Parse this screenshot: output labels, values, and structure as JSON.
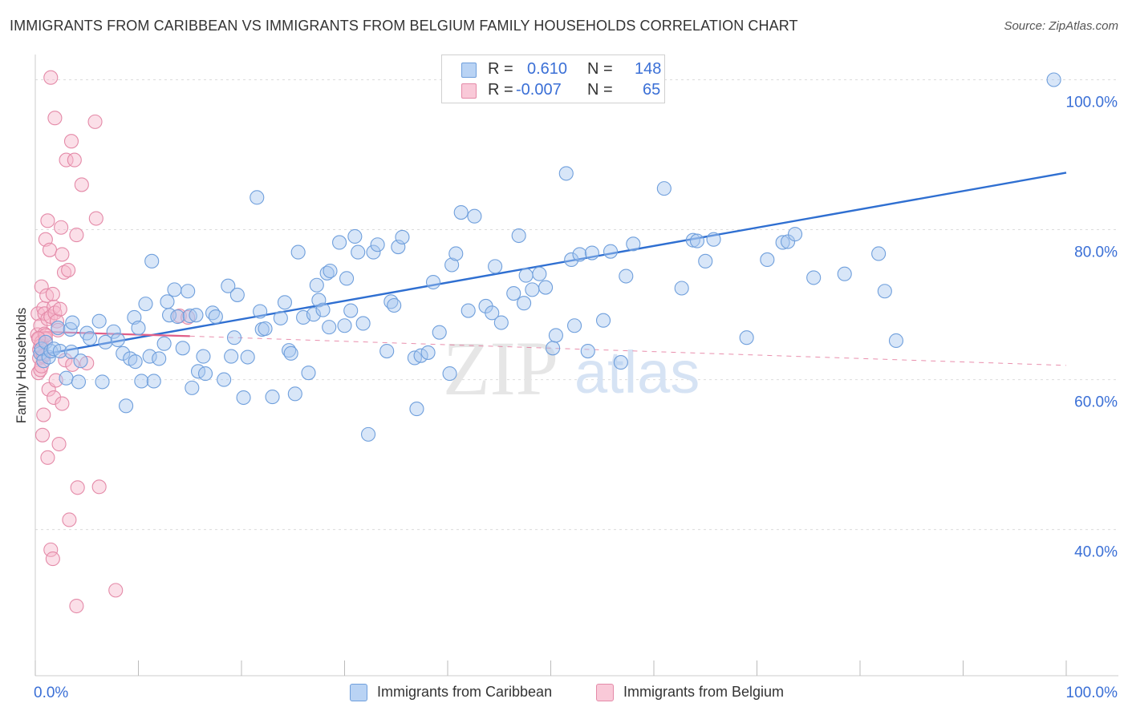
{
  "title": "IMMIGRANTS FROM CARIBBEAN VS IMMIGRANTS FROM BELGIUM FAMILY HOUSEHOLDS CORRELATION CHART",
  "source": "Source: ZipAtlas.com",
  "watermark": {
    "zip": "ZIP",
    "atlas": "atlas"
  },
  "legend": {
    "r_label": "R =",
    "n_label": "N =",
    "rows": [
      {
        "r": "0.610",
        "n": "148"
      },
      {
        "r": "-0.007",
        "n": "65"
      }
    ]
  },
  "colors": {
    "blue_fill": "#a8c8f0",
    "blue_stroke": "#6f9fdc",
    "blue_line": "#2f6fd1",
    "pink_fill": "#f7b8cc",
    "pink_stroke": "#e48aa8",
    "pink_line": "#e0608a",
    "axis_text": "#3a6fd6"
  },
  "chart_data": {
    "type": "scatter",
    "title": "IMMIGRANTS FROM CARIBBEAN VS IMMIGRANTS FROM BELGIUM FAMILY HOUSEHOLDS CORRELATION CHART",
    "xlabel": "",
    "ylabel": "Family Households",
    "x_unit": "%",
    "y_unit": "%",
    "xlim": [
      0,
      100
    ],
    "ylim": [
      20.5,
      102.3
    ],
    "x_ticks": [
      {
        "value": 0,
        "label": "0.0%"
      },
      {
        "value": 100,
        "label": "100.0%"
      }
    ],
    "y_ticks": [
      {
        "value": 40,
        "label": "40.0%"
      },
      {
        "value": 60,
        "label": "60.0%"
      },
      {
        "value": 80,
        "label": "80.0%"
      },
      {
        "value": 100,
        "label": "100.0%"
      }
    ],
    "series": [
      {
        "name": "Immigrants from Caribbean",
        "r": 0.61,
        "n": 148,
        "trend": {
          "x": [
            0.5,
            100
          ],
          "y": [
            63.3,
            87.6
          ],
          "style": "solid"
        },
        "points": [
          [
            0.5,
            63.5
          ],
          [
            0.6,
            64.1
          ],
          [
            0.8,
            62.5
          ],
          [
            1.0,
            65.0
          ],
          [
            1.3,
            63.0
          ],
          [
            1.5,
            63.8
          ],
          [
            1.8,
            64.1
          ],
          [
            2.2,
            66.9
          ],
          [
            2.4,
            63.8
          ],
          [
            3.0,
            60.2
          ],
          [
            3.4,
            66.7
          ],
          [
            3.5,
            63.7
          ],
          [
            3.6,
            67.6
          ],
          [
            4.2,
            59.7
          ],
          [
            4.4,
            62.5
          ],
          [
            5.0,
            66.2
          ],
          [
            5.3,
            65.5
          ],
          [
            6.2,
            67.8
          ],
          [
            6.5,
            59.7
          ],
          [
            6.8,
            65.0
          ],
          [
            7.6,
            66.4
          ],
          [
            8.0,
            65.3
          ],
          [
            8.5,
            63.5
          ],
          [
            8.8,
            56.5
          ],
          [
            9.2,
            62.8
          ],
          [
            9.6,
            68.3
          ],
          [
            9.7,
            62.4
          ],
          [
            10.0,
            66.9
          ],
          [
            10.3,
            59.8
          ],
          [
            10.7,
            70.1
          ],
          [
            11.1,
            63.1
          ],
          [
            11.3,
            75.8
          ],
          [
            11.5,
            59.8
          ],
          [
            12.0,
            62.8
          ],
          [
            12.5,
            64.8
          ],
          [
            12.8,
            70.4
          ],
          [
            13.0,
            68.6
          ],
          [
            13.5,
            72.0
          ],
          [
            13.8,
            68.4
          ],
          [
            14.3,
            64.2
          ],
          [
            14.8,
            71.8
          ],
          [
            15.0,
            68.5
          ],
          [
            15.2,
            58.9
          ],
          [
            15.6,
            68.6
          ],
          [
            15.8,
            61.1
          ],
          [
            16.3,
            63.1
          ],
          [
            16.5,
            60.8
          ],
          [
            17.2,
            68.9
          ],
          [
            17.5,
            68.4
          ],
          [
            18.3,
            60.0
          ],
          [
            18.7,
            72.5
          ],
          [
            19.0,
            63.1
          ],
          [
            19.3,
            65.6
          ],
          [
            19.6,
            71.3
          ],
          [
            20.2,
            57.6
          ],
          [
            20.6,
            63.0
          ],
          [
            21.5,
            84.3
          ],
          [
            21.8,
            69.1
          ],
          [
            22.0,
            66.7
          ],
          [
            22.3,
            66.8
          ],
          [
            23.0,
            57.7
          ],
          [
            23.8,
            68.2
          ],
          [
            24.2,
            70.3
          ],
          [
            24.6,
            63.9
          ],
          [
            24.8,
            63.5
          ],
          [
            25.2,
            58.1
          ],
          [
            25.5,
            77.0
          ],
          [
            26.0,
            68.3
          ],
          [
            26.5,
            60.9
          ],
          [
            27.0,
            68.7
          ],
          [
            27.3,
            72.6
          ],
          [
            27.5,
            70.6
          ],
          [
            27.9,
            69.3
          ],
          [
            28.3,
            74.2
          ],
          [
            28.5,
            67.0
          ],
          [
            28.6,
            74.5
          ],
          [
            29.5,
            78.3
          ],
          [
            30.0,
            67.2
          ],
          [
            30.2,
            73.5
          ],
          [
            30.6,
            69.2
          ],
          [
            31.0,
            79.1
          ],
          [
            31.3,
            77.0
          ],
          [
            31.8,
            67.5
          ],
          [
            32.3,
            52.7
          ],
          [
            32.8,
            77.0
          ],
          [
            33.2,
            78.0
          ],
          [
            34.1,
            63.8
          ],
          [
            34.5,
            70.4
          ],
          [
            34.8,
            69.9
          ],
          [
            35.2,
            77.7
          ],
          [
            35.6,
            79.0
          ],
          [
            36.8,
            62.9
          ],
          [
            37.0,
            56.1
          ],
          [
            37.4,
            63.2
          ],
          [
            38.1,
            63.6
          ],
          [
            38.6,
            73.0
          ],
          [
            39.2,
            66.3
          ],
          [
            40.2,
            60.8
          ],
          [
            40.4,
            75.3
          ],
          [
            40.8,
            76.8
          ],
          [
            41.3,
            82.3
          ],
          [
            42.0,
            69.2
          ],
          [
            42.6,
            81.8
          ],
          [
            43.7,
            69.8
          ],
          [
            44.3,
            68.9
          ],
          [
            44.6,
            75.1
          ],
          [
            45.2,
            67.6
          ],
          [
            46.4,
            71.5
          ],
          [
            46.9,
            79.2
          ],
          [
            47.4,
            70.2
          ],
          [
            47.6,
            73.9
          ],
          [
            48.2,
            72.0
          ],
          [
            48.9,
            74.1
          ],
          [
            49.5,
            72.3
          ],
          [
            50.2,
            64.2
          ],
          [
            50.5,
            65.9
          ],
          [
            51.5,
            87.5
          ],
          [
            52.0,
            76.0
          ],
          [
            52.3,
            67.2
          ],
          [
            52.8,
            76.7
          ],
          [
            53.6,
            63.8
          ],
          [
            54.0,
            76.9
          ],
          [
            55.1,
            67.9
          ],
          [
            55.8,
            77.1
          ],
          [
            56.8,
            62.3
          ],
          [
            57.3,
            73.8
          ],
          [
            58.0,
            78.1
          ],
          [
            61.0,
            85.5
          ],
          [
            62.7,
            72.2
          ],
          [
            63.8,
            78.6
          ],
          [
            64.2,
            78.5
          ],
          [
            65.0,
            75.8
          ],
          [
            65.8,
            78.7
          ],
          [
            69.0,
            65.6
          ],
          [
            71.0,
            76.0
          ],
          [
            72.5,
            78.3
          ],
          [
            73.0,
            78.4
          ],
          [
            73.7,
            79.4
          ],
          [
            75.5,
            73.6
          ],
          [
            78.5,
            74.1
          ],
          [
            81.8,
            76.8
          ],
          [
            82.4,
            71.8
          ],
          [
            83.5,
            65.2
          ],
          [
            98.8,
            100.0
          ]
        ]
      },
      {
        "name": "Immigrants from Belgium",
        "r": -0.007,
        "n": 65,
        "trend": {
          "x": [
            0.3,
            15.0
          ],
          "y": [
            66.4,
            65.8
          ],
          "style": "solid",
          "dashed_extension": {
            "x": [
              15.0,
              100
            ],
            "y": [
              65.8,
              61.9
            ]
          }
        },
        "points": [
          [
            0.2,
            66.0
          ],
          [
            0.25,
            68.8
          ],
          [
            0.3,
            60.9
          ],
          [
            0.35,
            65.4
          ],
          [
            0.4,
            64.0
          ],
          [
            0.5,
            67.2
          ],
          [
            0.5,
            61.3
          ],
          [
            0.6,
            72.4
          ],
          [
            0.6,
            65.0
          ],
          [
            0.7,
            52.6
          ],
          [
            0.7,
            63.2
          ],
          [
            0.8,
            55.3
          ],
          [
            0.8,
            69.5
          ],
          [
            0.9,
            66.1
          ],
          [
            0.9,
            68.8
          ],
          [
            1.0,
            78.7
          ],
          [
            1.0,
            65.4
          ],
          [
            1.1,
            71.2
          ],
          [
            1.2,
            49.6
          ],
          [
            1.2,
            81.2
          ],
          [
            1.2,
            68.1
          ],
          [
            1.3,
            58.7
          ],
          [
            1.4,
            77.3
          ],
          [
            1.5,
            100.3
          ],
          [
            1.5,
            68.4
          ],
          [
            1.5,
            37.3
          ],
          [
            1.7,
            36.1
          ],
          [
            1.7,
            71.4
          ],
          [
            1.8,
            57.6
          ],
          [
            1.8,
            69.7
          ],
          [
            1.9,
            94.9
          ],
          [
            1.9,
            68.9
          ],
          [
            2.0,
            59.9
          ],
          [
            2.1,
            67.8
          ],
          [
            2.2,
            66.6
          ],
          [
            2.3,
            51.4
          ],
          [
            2.4,
            69.4
          ],
          [
            2.5,
            80.3
          ],
          [
            2.6,
            76.7
          ],
          [
            2.6,
            56.8
          ],
          [
            2.8,
            74.3
          ],
          [
            2.9,
            62.6
          ],
          [
            3.0,
            89.3
          ],
          [
            3.2,
            74.6
          ],
          [
            3.3,
            41.3
          ],
          [
            3.5,
            91.8
          ],
          [
            3.6,
            62.0
          ],
          [
            3.8,
            89.3
          ],
          [
            4.0,
            79.3
          ],
          [
            4.0,
            29.8
          ],
          [
            4.1,
            45.6
          ],
          [
            4.5,
            86.0
          ],
          [
            5.0,
            62.2
          ],
          [
            5.8,
            94.4
          ],
          [
            5.9,
            81.5
          ],
          [
            6.2,
            45.7
          ],
          [
            7.8,
            31.9
          ],
          [
            14.0,
            68.5
          ],
          [
            14.8,
            68.3
          ],
          [
            0.4,
            62.9
          ],
          [
            0.5,
            64.5
          ],
          [
            0.8,
            63.1
          ],
          [
            1.0,
            65.9
          ],
          [
            0.3,
            65.5
          ],
          [
            0.6,
            61.8
          ]
        ]
      }
    ]
  }
}
